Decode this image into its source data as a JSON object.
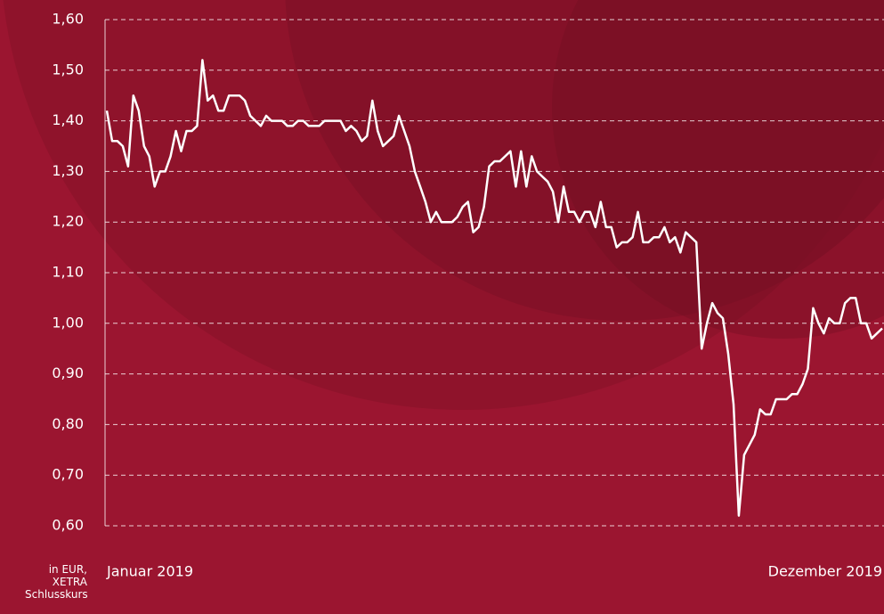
{
  "chart_data": {
    "type": "line",
    "axis_note": "in EUR, XETRA Schlusskurs",
    "categories": [
      "Januar 2019",
      null,
      null,
      null,
      null,
      null,
      null,
      null,
      null,
      null,
      null,
      null,
      null,
      null,
      null,
      null,
      null,
      null,
      null,
      null,
      null,
      null,
      null,
      null,
      null,
      null,
      null,
      null,
      null,
      null,
      null,
      null,
      null,
      null,
      null,
      null,
      null,
      null,
      null,
      null,
      null,
      null,
      null,
      null,
      null,
      null,
      null,
      null,
      null,
      null,
      null,
      null,
      null,
      null,
      null,
      null,
      null,
      null,
      null,
      null,
      null,
      null,
      null,
      null,
      null,
      null,
      null,
      null,
      null,
      null,
      null,
      null,
      null,
      null,
      null,
      null,
      null,
      null,
      null,
      null,
      null,
      null,
      null,
      null,
      null,
      null,
      null,
      null,
      null,
      null,
      null,
      null,
      null,
      null,
      null,
      null,
      null,
      null,
      null,
      null,
      null,
      null,
      null,
      null,
      null,
      null,
      null,
      null,
      null,
      null,
      null,
      null,
      null,
      null,
      null,
      null,
      null,
      null,
      null,
      null,
      null,
      null,
      null,
      null,
      null,
      null,
      null,
      null,
      null,
      null,
      null,
      null,
      null,
      null,
      null,
      null,
      null,
      null,
      null,
      null,
      null,
      null,
      null,
      null,
      null,
      null,
      "Dezember 2019"
    ],
    "values": [
      1.42,
      1.36,
      1.36,
      1.35,
      1.31,
      1.45,
      1.42,
      1.35,
      1.33,
      1.27,
      1.3,
      1.3,
      1.33,
      1.38,
      1.34,
      1.38,
      1.38,
      1.39,
      1.52,
      1.44,
      1.45,
      1.42,
      1.42,
      1.45,
      1.45,
      1.45,
      1.44,
      1.41,
      1.4,
      1.39,
      1.41,
      1.4,
      1.4,
      1.4,
      1.39,
      1.39,
      1.4,
      1.4,
      1.39,
      1.39,
      1.39,
      1.4,
      1.4,
      1.4,
      1.4,
      1.38,
      1.39,
      1.38,
      1.36,
      1.37,
      1.44,
      1.38,
      1.35,
      1.36,
      1.37,
      1.41,
      1.38,
      1.35,
      1.3,
      1.27,
      1.24,
      1.2,
      1.22,
      1.2,
      1.2,
      1.2,
      1.21,
      1.23,
      1.24,
      1.18,
      1.19,
      1.23,
      1.31,
      1.32,
      1.32,
      1.33,
      1.34,
      1.27,
      1.34,
      1.27,
      1.33,
      1.3,
      1.29,
      1.28,
      1.26,
      1.2,
      1.27,
      1.22,
      1.22,
      1.2,
      1.22,
      1.22,
      1.19,
      1.24,
      1.19,
      1.19,
      1.15,
      1.16,
      1.16,
      1.17,
      1.22,
      1.16,
      1.16,
      1.17,
      1.17,
      1.19,
      1.16,
      1.17,
      1.14,
      1.18,
      1.17,
      1.16,
      0.95,
      1.0,
      1.04,
      1.02,
      1.01,
      0.94,
      0.84,
      0.62,
      0.74,
      0.76,
      0.78,
      0.83,
      0.82,
      0.82,
      0.85,
      0.85,
      0.85,
      0.86,
      0.86,
      0.88,
      0.91,
      1.03,
      1.0,
      0.98,
      1.01,
      1.0,
      1.0,
      1.04,
      1.05,
      1.05,
      1.0,
      1.0,
      0.97,
      0.98,
      0.99
    ],
    "color": "#ffffff",
    "ylim": [
      0.6,
      1.6
    ],
    "yticks": [
      {
        "value": 0.6,
        "label": "0,60"
      },
      {
        "value": 0.7,
        "label": "0,70"
      },
      {
        "value": 0.8,
        "label": "0,80"
      },
      {
        "value": 0.9,
        "label": "0,90"
      },
      {
        "value": 1.0,
        "label": "1,00"
      },
      {
        "value": 1.1,
        "label": "1,10"
      },
      {
        "value": 1.2,
        "label": "1,20"
      },
      {
        "value": 1.3,
        "label": "1,30"
      },
      {
        "value": 1.4,
        "label": "1,40"
      },
      {
        "value": 1.5,
        "label": "1,50"
      },
      {
        "value": 1.6,
        "label": "1,60"
      }
    ],
    "grid": true
  }
}
